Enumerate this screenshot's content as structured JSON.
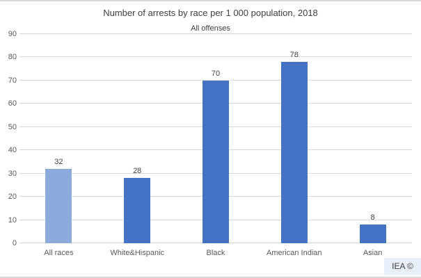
{
  "header": {
    "title": "Number of arrests by race per 1 000 population, 2018",
    "subtitle": "All offenses"
  },
  "branding": {
    "label": "IEA ©"
  },
  "colors": {
    "bar_default": "#4472c4",
    "bar_highlight": "#8ea9db",
    "gridline": "#d9d9d9",
    "title_text": "#404040",
    "axis_text": "#595959",
    "badge_bg": "#e9eff8"
  },
  "chart_data": {
    "type": "bar",
    "title": "Number of arrests by race per 1 000 population, 2018",
    "subtitle": "All offenses",
    "categories": [
      "All races",
      "White&Hispanic",
      "Black",
      "American Indian",
      "Asian"
    ],
    "values": [
      32,
      28,
      70,
      78,
      8
    ],
    "bar_colors": [
      "#8ea9db",
      "#4472c4",
      "#4472c4",
      "#4472c4",
      "#4472c4"
    ],
    "data_labels": [
      32,
      28,
      70,
      78,
      8
    ],
    "xlabel": "",
    "ylabel": "",
    "ylim": [
      0,
      90
    ],
    "ytick_step": 10,
    "yticks": [
      0,
      10,
      20,
      30,
      40,
      50,
      60,
      70,
      80,
      90
    ],
    "grid": true,
    "legend_position": "none"
  }
}
